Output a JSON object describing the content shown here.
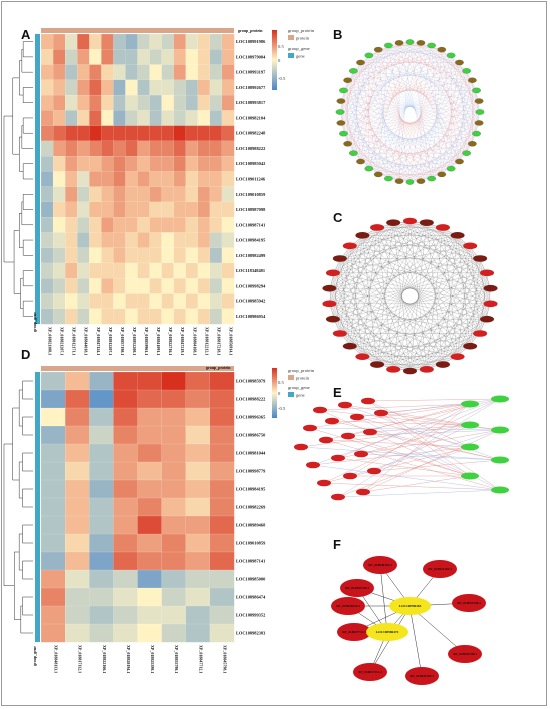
{
  "panels": {
    "a": "A",
    "b": "B",
    "c": "C",
    "d": "D",
    "e": "E",
    "f": "F"
  },
  "legend_a": {
    "group_protein_title": "group_protein",
    "protein_item": "protein",
    "group_gene_title": "group_gene",
    "gene_item": "gene",
    "scale_max": "0.5",
    "scale_mid": "0",
    "scale_min": "-0.5"
  },
  "legend_d": {
    "group_protein_title": "group_protein",
    "protein_item": "protein",
    "group_gene_title": "group_gene",
    "gene_item": "gene",
    "scale_max": "0.5",
    "scale_mid": "0",
    "scale_min": "-0.5"
  },
  "heatmap_a": {
    "top_label": "group_protein",
    "left_label": "group_gene",
    "rows": [
      "LOC108991986",
      "LOC108979084",
      "LOC108993197",
      "LOC108992677",
      "LOC108993817",
      "LOC108982104",
      "LOC108982248",
      "LOC108988222",
      "LOC108985042",
      "LOC109011246",
      "LOC109010859",
      "LOC108987098",
      "LOC108987141",
      "LOC108984195",
      "LOC108982499",
      "LOC118348481",
      "LOC108998294",
      "LOC108985942",
      "LOC108986954"
    ],
    "cols": [
      "XP_018821108.1",
      "XP_018821207.1",
      "XP_018812171.1",
      "XP_018844018.1",
      "XP_018847124.1",
      "XP_018812207.1",
      "XP_018857198.1",
      "XP_018852208.1",
      "XP_018859961.1",
      "XP_018841091.1",
      "XP_018822716.1",
      "XP_018847219.1",
      "XP_018804168.1",
      "XP_018812212.1",
      "XP_018817218.1",
      "XP_018856914.1"
    ],
    "values": [
      [
        0.2,
        0.3,
        -0.1,
        0.5,
        0.1,
        0.4,
        -0.3,
        -0.4,
        -0.2,
        -0.1,
        -0.2,
        0.3,
        -0.1,
        0.1,
        -0.2,
        0.2
      ],
      [
        0.1,
        0.4,
        -0.2,
        0.3,
        0.0,
        0.4,
        -0.3,
        -0.3,
        -0.1,
        -0.2,
        -0.1,
        0.2,
        0.0,
        0.1,
        -0.3,
        0.2
      ],
      [
        0.2,
        0.3,
        -0.3,
        0.2,
        0.4,
        0.1,
        -0.1,
        -0.3,
        -0.2,
        0.0,
        -0.2,
        0.3,
        0.0,
        0.1,
        -0.2,
        0.3
      ],
      [
        0.1,
        0.2,
        -0.2,
        0.3,
        0.5,
        0.2,
        -0.4,
        0.0,
        -0.3,
        -0.1,
        -0.1,
        -0.2,
        -0.3,
        0.2,
        -0.1,
        0.2
      ],
      [
        0.2,
        0.3,
        -0.1,
        0.2,
        0.4,
        0.1,
        -0.3,
        -0.1,
        -0.2,
        -0.3,
        0.0,
        -0.2,
        -0.3,
        0.1,
        -0.2,
        0.3
      ],
      [
        0.3,
        0.2,
        -0.3,
        0.1,
        0.5,
        0.0,
        -0.4,
        -0.2,
        -0.1,
        -0.3,
        -0.1,
        -0.2,
        -0.1,
        0.0,
        -0.3,
        0.1
      ],
      [
        0.4,
        0.5,
        0.6,
        0.6,
        0.7,
        0.6,
        0.6,
        0.6,
        0.6,
        0.6,
        0.6,
        0.7,
        0.6,
        0.6,
        0.6,
        0.5
      ],
      [
        -0.2,
        0.3,
        0.4,
        0.3,
        0.4,
        0.5,
        0.4,
        0.5,
        0.3,
        0.4,
        0.4,
        0.5,
        0.3,
        0.4,
        0.4,
        0.3
      ],
      [
        -0.3,
        0.1,
        0.3,
        0.2,
        0.2,
        0.3,
        0.4,
        0.3,
        0.2,
        0.3,
        0.3,
        0.4,
        0.2,
        0.3,
        0.3,
        0.2
      ],
      [
        -0.4,
        0.0,
        0.2,
        -0.1,
        0.3,
        0.3,
        0.4,
        0.2,
        0.3,
        0.2,
        0.2,
        0.3,
        0.1,
        0.2,
        0.2,
        0.1
      ],
      [
        -0.3,
        -0.1,
        0.3,
        -0.2,
        0.1,
        0.2,
        0.3,
        0.2,
        0.2,
        0.3,
        0.2,
        0.2,
        0.1,
        0.3,
        0.2,
        -0.1
      ],
      [
        -0.4,
        0.1,
        0.2,
        -0.1,
        0.2,
        0.2,
        0.3,
        0.2,
        0.2,
        0.1,
        0.1,
        0.2,
        0.2,
        0.3,
        0.1,
        0.1
      ],
      [
        -0.3,
        0.0,
        0.1,
        -0.2,
        0.1,
        0.3,
        0.2,
        0.2,
        0.1,
        0.2,
        0.2,
        0.2,
        0.1,
        0.2,
        0.1,
        0.0
      ],
      [
        -0.2,
        -0.1,
        0.1,
        -0.3,
        0.1,
        0.2,
        0.2,
        0.1,
        0.2,
        0.1,
        0.0,
        0.1,
        0.1,
        0.2,
        -0.2,
        -0.1
      ],
      [
        -0.3,
        -0.2,
        0.1,
        -0.2,
        0.0,
        0.1,
        0.2,
        0.1,
        0.1,
        0.1,
        0.0,
        0.1,
        0.0,
        0.1,
        -0.3,
        0.0
      ],
      [
        -0.2,
        -0.1,
        0.2,
        -0.1,
        0.1,
        0.1,
        0.1,
        0.0,
        0.1,
        0.0,
        0.1,
        0.0,
        0.1,
        0.0,
        -0.1,
        0.1
      ],
      [
        -0.3,
        -0.2,
        0.1,
        -0.2,
        0.0,
        0.2,
        0.1,
        0.0,
        0.0,
        0.1,
        0.0,
        0.1,
        0.0,
        0.1,
        -0.2,
        0.0
      ],
      [
        -0.2,
        -0.1,
        0.0,
        -0.1,
        0.1,
        0.1,
        0.0,
        0.1,
        0.1,
        0.0,
        0.1,
        0.0,
        0.1,
        0.0,
        -0.1,
        0.1
      ],
      [
        -0.3,
        -0.2,
        0.1,
        -0.2,
        0.0,
        0.1,
        0.1,
        0.0,
        0.1,
        0.1,
        0.0,
        0.1,
        0.0,
        0.1,
        -0.2,
        0.0
      ]
    ]
  },
  "heatmap_d": {
    "top_label": "group_protein",
    "left_label": "group_gene",
    "rows": [
      "LOC108985979",
      "LOC108988222",
      "LOC108996365",
      "LOC108986750",
      "LOC108981044",
      "LOC108998779",
      "LOC108984195",
      "LOC108982269",
      "LOC108989468",
      "LOC109010859",
      "LOC108987141",
      "LOC108985000",
      "LOC108986474",
      "LOC108999352",
      "LOC108982383"
    ],
    "cols": [
      "XP_018848113.1",
      "XP_018817112.1",
      "XP_018822166.1",
      "XP_018828194.1",
      "XP_018825398.1",
      "XP_018855798.1",
      "XP_018847712.1",
      "XP_018845798.1"
    ],
    "values": [
      [
        -0.3,
        0.2,
        -0.4,
        0.6,
        0.6,
        0.7,
        0.5,
        0.6
      ],
      [
        -0.5,
        0.5,
        -0.6,
        0.6,
        0.5,
        0.5,
        0.4,
        0.5
      ],
      [
        0.0,
        0.4,
        -0.3,
        0.5,
        0.3,
        0.3,
        0.2,
        0.5
      ],
      [
        -0.4,
        0.3,
        -0.2,
        0.4,
        0.3,
        0.3,
        0.1,
        0.4
      ],
      [
        -0.3,
        0.2,
        -0.3,
        0.3,
        0.4,
        0.3,
        0.2,
        0.4
      ],
      [
        -0.3,
        0.1,
        -0.3,
        0.3,
        0.2,
        0.3,
        0.1,
        0.3
      ],
      [
        -0.3,
        0.2,
        -0.4,
        0.4,
        0.3,
        0.3,
        0.2,
        0.4
      ],
      [
        -0.3,
        0.2,
        -0.3,
        0.3,
        0.4,
        0.2,
        0.1,
        0.4
      ],
      [
        -0.3,
        0.2,
        -0.3,
        0.3,
        0.6,
        0.3,
        0.3,
        0.5
      ],
      [
        -0.3,
        0.1,
        -0.4,
        0.4,
        0.3,
        0.4,
        0.2,
        0.4
      ],
      [
        -0.4,
        0.2,
        -0.5,
        0.5,
        0.4,
        0.4,
        0.3,
        0.5
      ],
      [
        0.3,
        -0.1,
        -0.3,
        -0.2,
        -0.5,
        -0.3,
        -0.2,
        -0.2
      ],
      [
        0.4,
        -0.2,
        -0.2,
        -0.1,
        0.0,
        -0.2,
        -0.1,
        -0.3
      ],
      [
        0.3,
        -0.2,
        -0.3,
        -0.2,
        -0.1,
        -0.1,
        -0.3,
        -0.2
      ],
      [
        0.3,
        -0.1,
        -0.2,
        -0.1,
        0.0,
        -0.2,
        -0.3,
        -0.1
      ]
    ]
  },
  "network_f": {
    "hub1": "LOC108996365",
    "hub2": "LOC108986474",
    "nodes": [
      "XP_018848194.1",
      "XP_018822166.1",
      "XP_018855798.1",
      "XP_018825398.1",
      "XP_018847712.1",
      "XP_018845798.1",
      "XP_018817112.1",
      "XP_018828194.1",
      "XP_018844018.1"
    ]
  },
  "colors": {
    "heat_high": "#d7301f",
    "heat_mid": "#fff3c4",
    "heat_low": "#4a86c8",
    "node_red": "#c8141a",
    "node_green": "#3fd13f",
    "node_dark_red": "#7a1c14",
    "hub_yellow": "#f5e51d",
    "protein_group": "#d9a58b",
    "gene_group": "#42a8c8"
  }
}
